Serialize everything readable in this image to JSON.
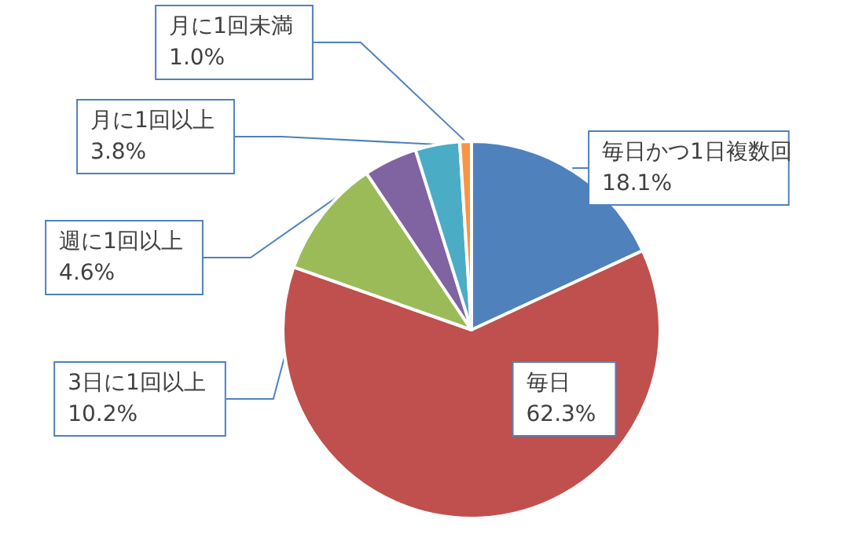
{
  "chart_data": {
    "type": "pie",
    "categories": [
      "毎日かつ1日複数回",
      "毎日",
      "3日に1回以上",
      "週に1回以上",
      "月に1回以上",
      "月に1回未満"
    ],
    "values": [
      18.1,
      62.3,
      10.2,
      4.6,
      3.8,
      1.0
    ],
    "value_labels": [
      "18.1%",
      "62.3%",
      "10.2%",
      "4.6%",
      "3.8%",
      "1.0%"
    ],
    "colors": [
      "#4f81bd",
      "#c0504d",
      "#9bbb59",
      "#8064a2",
      "#4bacc6",
      "#f79646"
    ],
    "legend": false
  }
}
